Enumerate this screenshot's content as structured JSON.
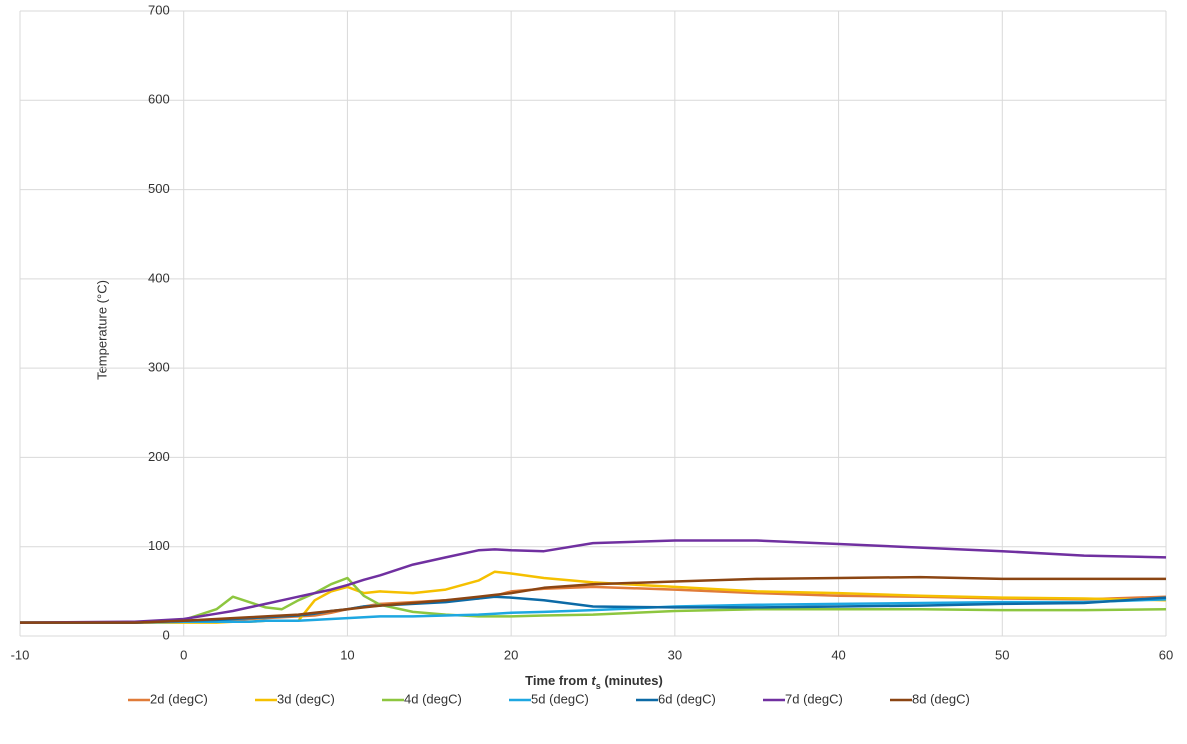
{
  "chart_data": {
    "type": "line",
    "y_label": "Temperature (°C)",
    "x_label": [
      "Time from ",
      "t",
      "s",
      " (minutes)"
    ],
    "x": [
      -10,
      -3,
      0,
      2,
      3,
      4,
      5,
      6,
      7,
      8,
      9,
      10,
      11,
      12,
      14,
      16,
      18,
      19,
      20,
      22,
      25,
      30,
      35,
      40,
      45,
      50,
      55,
      60
    ],
    "series": [
      {
        "name": "2d (degC)",
        "color": "#e07b39",
        "values": [
          15,
          15,
          16,
          17,
          18,
          19,
          20,
          21,
          22,
          23,
          26,
          30,
          33,
          36,
          38,
          40,
          42,
          45,
          50,
          53,
          55,
          52,
          48,
          45,
          44,
          42,
          41,
          44
        ]
      },
      {
        "name": "3d (degC)",
        "color": "#f5c000",
        "values": [
          15,
          15,
          15,
          15,
          16,
          16,
          17,
          17,
          17,
          40,
          50,
          55,
          48,
          50,
          48,
          52,
          62,
          72,
          70,
          65,
          60,
          55,
          50,
          48,
          45,
          43,
          42,
          40
        ]
      },
      {
        "name": "4d (degC)",
        "color": "#8dc63f",
        "values": [
          15,
          15,
          18,
          30,
          44,
          38,
          32,
          30,
          40,
          48,
          58,
          65,
          45,
          35,
          27,
          24,
          22,
          22,
          22,
          23,
          24,
          28,
          30,
          30,
          30,
          29,
          29,
          30
        ]
      },
      {
        "name": "5d (degC)",
        "color": "#1ea7e1",
        "values": [
          15,
          15,
          16,
          16,
          16,
          16,
          17,
          17,
          17,
          18,
          19,
          20,
          21,
          22,
          22,
          23,
          24,
          25,
          26,
          27,
          29,
          33,
          35,
          36,
          37,
          38,
          38,
          41
        ]
      },
      {
        "name": "6d (degC)",
        "color": "#0c6aa6",
        "values": [
          15,
          15,
          17,
          18,
          19,
          20,
          21,
          22,
          23,
          25,
          28,
          30,
          33,
          34,
          36,
          38,
          42,
          44,
          43,
          40,
          33,
          32,
          32,
          33,
          34,
          36,
          37,
          43
        ]
      },
      {
        "name": "7d (degC)",
        "color": "#7030a0",
        "values": [
          15,
          16,
          19,
          25,
          28,
          32,
          36,
          40,
          44,
          48,
          52,
          57,
          63,
          68,
          80,
          88,
          96,
          97,
          96,
          95,
          104,
          107,
          107,
          103,
          99,
          95,
          90,
          88
        ]
      },
      {
        "name": "8d (degC)",
        "color": "#8b4513",
        "values": [
          15,
          15,
          17,
          19,
          20,
          21,
          22,
          23,
          24,
          26,
          28,
          30,
          32,
          34,
          37,
          40,
          44,
          46,
          48,
          54,
          58,
          61,
          64,
          65,
          66,
          64,
          64,
          64
        ]
      }
    ],
    "xlim": [
      -10,
      60
    ],
    "xticks": [
      -10,
      0,
      10,
      20,
      30,
      40,
      50,
      60
    ],
    "ylim": [
      0,
      700
    ],
    "yticks": [
      0,
      100,
      200,
      300,
      400,
      500,
      600,
      700
    ],
    "grid": true,
    "legend": "bottom"
  }
}
